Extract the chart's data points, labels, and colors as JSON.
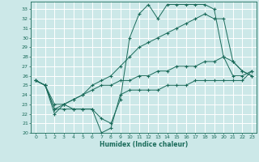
{
  "xlabel": "Humidex (Indice chaleur)",
  "bg_color": "#cce8e8",
  "grid_color": "#ffffff",
  "line_color": "#1a6b5a",
  "xlim": [
    -0.5,
    23.5
  ],
  "ylim": [
    20,
    33.8
  ],
  "xticks": [
    0,
    1,
    2,
    3,
    4,
    5,
    6,
    7,
    8,
    9,
    10,
    11,
    12,
    13,
    14,
    15,
    16,
    17,
    18,
    19,
    20,
    21,
    22,
    23
  ],
  "yticks": [
    20,
    21,
    22,
    23,
    24,
    25,
    26,
    27,
    28,
    29,
    30,
    31,
    32,
    33
  ],
  "line1": {
    "x": [
      0,
      1,
      2,
      3,
      4,
      5,
      6,
      7,
      8,
      9,
      10,
      11,
      12,
      13,
      14,
      15,
      16,
      17,
      18,
      19,
      20,
      21,
      22,
      23
    ],
    "y": [
      25.5,
      25.0,
      22.5,
      22.5,
      22.5,
      22.5,
      22.5,
      21.5,
      21.0,
      23.5,
      30.0,
      32.5,
      33.5,
      32.0,
      33.5,
      33.5,
      33.5,
      33.5,
      33.5,
      33.0,
      28.0,
      27.5,
      26.5,
      26.0
    ]
  },
  "line2": {
    "x": [
      0,
      1,
      2,
      3,
      4,
      5,
      6,
      7,
      8,
      9,
      10,
      11,
      12,
      13,
      14,
      15,
      16,
      17,
      18,
      19,
      20,
      21,
      22,
      23
    ],
    "y": [
      25.5,
      25.0,
      23.0,
      23.0,
      23.5,
      24.0,
      25.0,
      25.5,
      26.0,
      27.0,
      28.0,
      29.0,
      29.5,
      30.0,
      30.5,
      31.0,
      31.5,
      32.0,
      32.5,
      32.0,
      32.0,
      27.5,
      26.5,
      26.0
    ]
  },
  "line3": {
    "x": [
      0,
      1,
      2,
      3,
      4,
      5,
      6,
      7,
      8,
      9,
      10,
      11,
      12,
      13,
      14,
      15,
      16,
      17,
      18,
      19,
      20,
      21,
      22,
      23
    ],
    "y": [
      25.5,
      25.0,
      22.5,
      23.0,
      23.5,
      24.0,
      24.5,
      25.0,
      25.0,
      25.5,
      25.5,
      26.0,
      26.0,
      26.5,
      26.5,
      27.0,
      27.0,
      27.0,
      27.5,
      27.5,
      28.0,
      26.0,
      26.0,
      26.5
    ]
  },
  "line4": {
    "x": [
      0,
      1,
      2,
      3,
      4,
      5,
      6,
      7,
      8,
      9,
      10,
      11,
      12,
      13,
      14,
      15,
      16,
      17,
      18,
      19,
      20,
      21,
      22,
      23
    ],
    "y": [
      25.5,
      25.0,
      22.0,
      23.0,
      22.5,
      22.5,
      22.5,
      20.0,
      20.5,
      24.0,
      24.5,
      24.5,
      24.5,
      24.5,
      25.0,
      25.0,
      25.0,
      25.5,
      25.5,
      25.5,
      25.5,
      25.5,
      25.5,
      26.5
    ]
  }
}
